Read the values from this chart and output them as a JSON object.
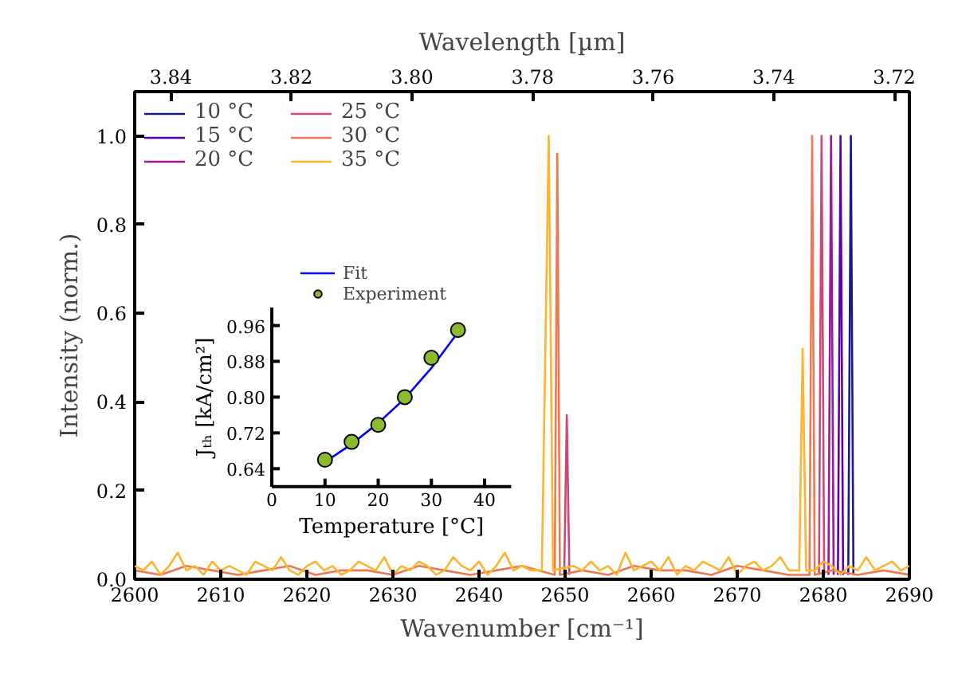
{
  "chart_data": [
    {
      "type": "line",
      "xlabel": "Wavenumber [cm⁻¹]",
      "ylabel": "Intensity (norm.)",
      "x2label": "Wavelength [µm]",
      "xlim": [
        2600,
        2690
      ],
      "xticks": [
        2600,
        2610,
        2620,
        2630,
        2640,
        2650,
        2660,
        2670,
        2680,
        2690
      ],
      "x2lim": [
        3.846,
        3.7175
      ],
      "x2ticks": [
        3.84,
        3.82,
        {
          "value": 3.8,
          "label": "3.80"
        },
        3.78,
        3.76,
        3.74,
        3.72
      ],
      "ylim": [
        0,
        1.1
      ],
      "yticks": [
        {
          "value": 0,
          "label": "0.0"
        },
        {
          "value": 0.2,
          "label": "0.2"
        },
        {
          "value": 0.4,
          "label": "0.4"
        },
        {
          "value": 0.6,
          "label": "0.6"
        },
        {
          "value": 0.8,
          "label": "0.8"
        },
        {
          "value": 1.0,
          "label": "1.0"
        }
      ],
      "legend": "top left",
      "series": [
        {
          "name": "10 °C",
          "color": "#1a1a8c",
          "x": [
            2682.9,
            2683.2,
            2683.5
          ],
          "values": [
            0.01,
            1.0,
            0.01
          ]
        },
        {
          "name": "15 °C",
          "color": "#5c01a6",
          "x": [
            2681.7,
            2682.0,
            2682.3
          ],
          "values": [
            0.01,
            1.0,
            0.01
          ]
        },
        {
          "name": "20 °C",
          "color": "#9c179e",
          "x": [
            2680.6,
            2680.9,
            2681.2
          ],
          "values": [
            0.01,
            1.0,
            0.01
          ]
        },
        {
          "name": "25 °C",
          "color": "#cc4778",
          "x": [
            2649.9,
            2650.2,
            2650.5,
            2665,
            2679.5,
            2679.8,
            2680.1
          ],
          "values": [
            0.01,
            0.37,
            0.01,
            null,
            0.01,
            1.0,
            0.01
          ]
        },
        {
          "name": "30 °C",
          "color": "#ed7953",
          "x": [
            2600,
            2603,
            2606,
            2609,
            2612,
            2615,
            2618,
            2621,
            2624,
            2627,
            2630,
            2633,
            2636,
            2639,
            2642,
            2645,
            2648.8,
            2649.1,
            2649.4,
            2652,
            2655,
            2658,
            2661,
            2664,
            2667,
            2670,
            2673,
            2676,
            2678.4,
            2678.7,
            2679.0,
            2681,
            2684,
            2687,
            2690
          ],
          "values": [
            0.02,
            0.01,
            0.03,
            0.02,
            0.01,
            0.02,
            0.03,
            0.01,
            0.02,
            0.02,
            0.01,
            0.03,
            0.02,
            0.01,
            0.02,
            0.03,
            0.01,
            0.96,
            0.01,
            0.02,
            0.01,
            0.03,
            0.02,
            0.02,
            0.01,
            0.03,
            0.02,
            0.01,
            0.01,
            1.0,
            0.01,
            0.02,
            0.01,
            0.02,
            0.01
          ]
        },
        {
          "name": "35 °C",
          "color": "#fdb42f",
          "x": [
            2600,
            2601,
            2602,
            2603,
            2604,
            2605,
            2606,
            2607,
            2608,
            2609,
            2610,
            2611,
            2612,
            2613,
            2614,
            2615,
            2616,
            2617,
            2618,
            2619,
            2620,
            2621,
            2622,
            2623,
            2624,
            2625,
            2626,
            2627,
            2628,
            2629,
            2630,
            2631,
            2632,
            2633,
            2634,
            2635,
            2636,
            2637,
            2638,
            2639,
            2640,
            2641,
            2642,
            2643,
            2644,
            2645,
            2646,
            2647.3,
            2648.1,
            2648.6,
            2651,
            2652,
            2653,
            2654,
            2655,
            2656,
            2657,
            2658,
            2659,
            2660,
            2661,
            2662,
            2663,
            2664,
            2665,
            2666,
            2667,
            2668,
            2669,
            2670,
            2671,
            2672,
            2673,
            2674,
            2675,
            2676,
            2677.2,
            2677.6,
            2678.0,
            2679,
            2680,
            2681,
            2682,
            2683,
            2684,
            2685,
            2686,
            2687,
            2688,
            2689,
            2690
          ],
          "values": [
            0.03,
            0.02,
            0.04,
            0.01,
            0.03,
            0.06,
            0.02,
            0.03,
            0.01,
            0.04,
            0.02,
            0.03,
            0.02,
            0.01,
            0.04,
            0.03,
            0.02,
            0.05,
            0.02,
            0.01,
            0.03,
            0.04,
            0.02,
            0.03,
            0.01,
            0.02,
            0.04,
            0.03,
            0.02,
            0.05,
            0.01,
            0.03,
            0.02,
            0.04,
            0.03,
            0.01,
            0.02,
            0.05,
            0.03,
            0.02,
            0.04,
            0.01,
            0.03,
            0.06,
            0.02,
            0.03,
            0.02,
            0.02,
            1.0,
            0.02,
            0.03,
            0.02,
            0.04,
            0.02,
            0.03,
            0.01,
            0.06,
            0.02,
            0.03,
            0.04,
            0.02,
            0.05,
            0.01,
            0.03,
            0.02,
            0.04,
            0.03,
            0.02,
            0.05,
            0.01,
            0.03,
            0.04,
            0.02,
            0.03,
            0.05,
            0.02,
            0.02,
            0.52,
            0.02,
            0.02,
            0.04,
            0.03,
            0.01,
            0.03,
            0.02,
            0.05,
            0.02,
            0.03,
            0.04,
            0.02,
            0.03
          ]
        }
      ]
    },
    {
      "type": "scatter",
      "xlabel": "Temperature [°C]",
      "ylabel": "Jₜₕ [kA/cm²]",
      "xlim": [
        0,
        45
      ],
      "xticks": [
        0,
        10,
        20,
        30,
        40
      ],
      "ylim": [
        0.6,
        1.0
      ],
      "yticks": [
        0.64,
        0.72,
        {
          "value": 0.8,
          "label": "0.80"
        },
        0.88,
        0.96
      ],
      "legend": "top",
      "series": [
        {
          "name": "Fit",
          "type": "line",
          "color": "#0000ff",
          "x": [
            10,
            15,
            20,
            25,
            30,
            35
          ],
          "values": [
            0.655,
            0.695,
            0.742,
            0.797,
            0.865,
            0.945
          ]
        },
        {
          "name": "Experiment",
          "color": "#8db92e",
          "marker": "circle",
          "x": [
            10,
            15,
            20,
            25,
            30,
            35
          ],
          "values": [
            0.66,
            0.7,
            0.738,
            0.8,
            0.888,
            0.95
          ]
        }
      ]
    }
  ]
}
